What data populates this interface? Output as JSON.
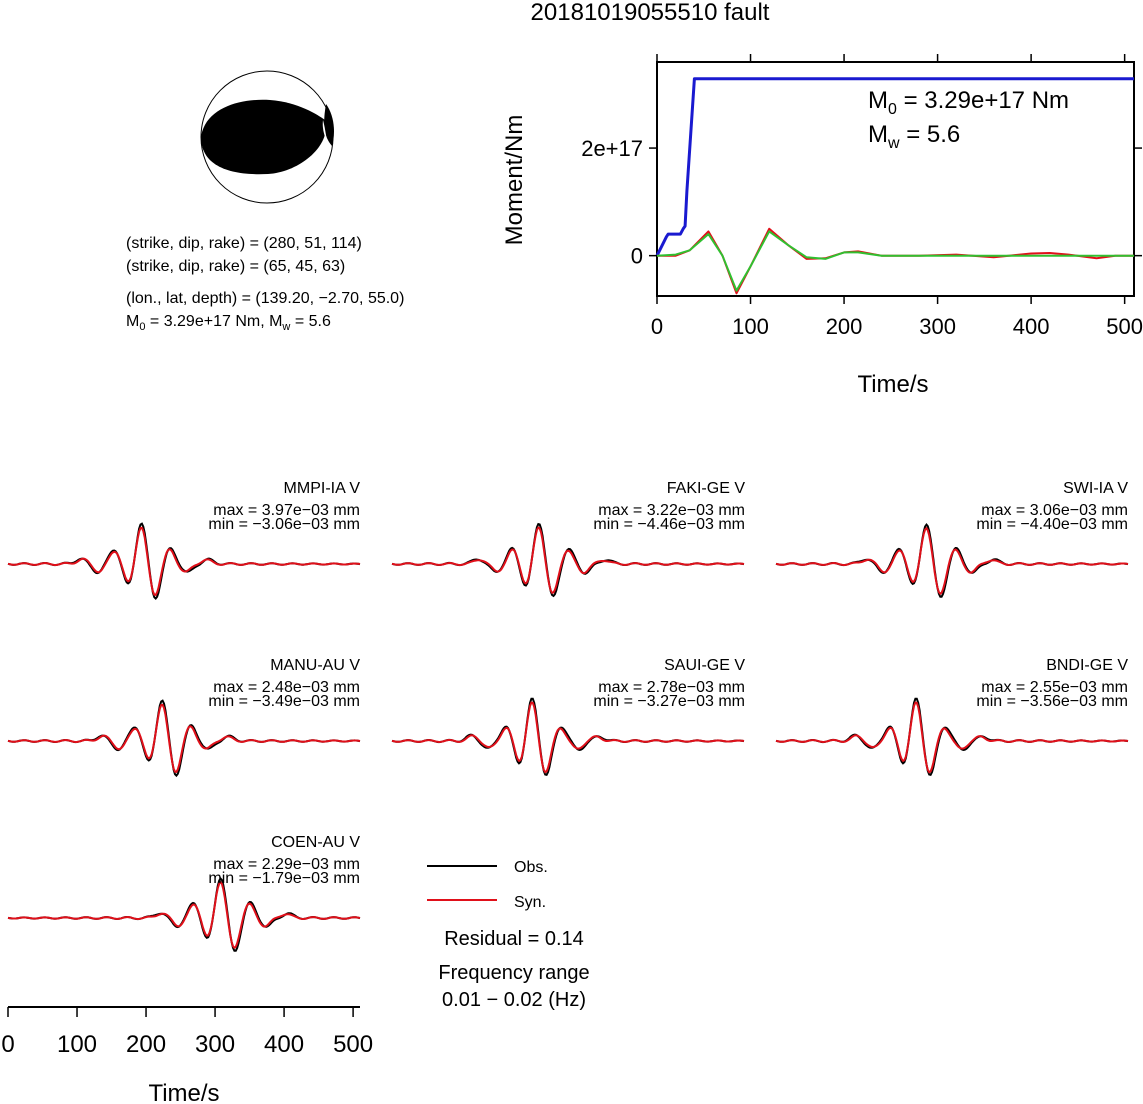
{
  "title": "20181019055510 fault",
  "colors": {
    "obs": "#000000",
    "syn": "#e0101a",
    "moment": "#1a1ad0",
    "stf": "#30c030",
    "beachball": "#000000"
  },
  "focal": {
    "line1": "(strike, dip, rake) = (280, 51, 114)",
    "line2": "(strike, dip, rake) = (65, 45, 63)",
    "line3": "(lon., lat, depth) = (139.20, −2.70, 55.0)",
    "m0_label": "M",
    "m0_sub": "0",
    "m0_text": " = 3.29e+17 Nm, M",
    "mw_sub": "w",
    "mw_text": " = 5.6"
  },
  "moment_chart": {
    "ylabel": "Moment/Nm",
    "xlabel": "Time/s",
    "xticks": [
      "0",
      "100",
      "200",
      "300",
      "400",
      "500"
    ],
    "yticks": [
      "0",
      "2e+17"
    ],
    "annotation_m0": " = 3.29e+17 Nm",
    "annotation_mw": " = 5.6",
    "m0_label": "M",
    "m0_sub": "0",
    "mw_label": "M",
    "mw_sub": "w"
  },
  "chart_data": [
    {
      "type": "line",
      "title": "",
      "xlabel": "Time/s",
      "ylabel": "Moment/Nm",
      "xlim": [
        0,
        510
      ],
      "ylim": [
        -7.5e+16,
        3.6e+17
      ],
      "series": [
        {
          "color": "#1a1ad0",
          "x": [
            0,
            10,
            12,
            25,
            28,
            30,
            32,
            40,
            510
          ],
          "y": [
            0,
            3.5e+16,
            4e+16,
            4e+16,
            5e+16,
            5.5e+16,
            1.2e+17,
            3.29e+17,
            3.29e+17
          ]
        },
        {
          "color": "#e0101a",
          "x": [
            0,
            20,
            35,
            55,
            70,
            85,
            100,
            120,
            140,
            160,
            180,
            200,
            215,
            240,
            280,
            320,
            360,
            400,
            420,
            440,
            470,
            490,
            510
          ],
          "y": [
            0,
            0,
            1e+16,
            4.5e+16,
            0,
            -7e+16,
            -2e+16,
            5e+16,
            2e+16,
            -6000000000000000.0,
            -5000000000000000.0,
            6000000000000000.0,
            8000000000000000.0,
            0,
            0,
            2000000000000000.0,
            -3000000000000000.0,
            4000000000000000.0,
            5000000000000000.0,
            2000000000000000.0,
            -5000000000000000.0,
            0,
            0
          ]
        },
        {
          "color": "#30c030",
          "x": [
            0,
            20,
            35,
            55,
            70,
            85,
            100,
            120,
            140,
            160,
            180,
            200,
            215,
            240,
            280,
            320,
            360,
            400,
            420,
            440,
            470,
            490,
            510
          ],
          "y": [
            0,
            2000000000000000.0,
            1e+16,
            4e+16,
            0,
            -6.5e+16,
            -2e+16,
            4.5e+16,
            2e+16,
            -3000000000000000.0,
            -6000000000000000.0,
            6000000000000000.0,
            6000000000000000.0,
            0,
            0,
            0,
            0,
            0,
            0,
            0,
            0,
            0,
            0
          ]
        }
      ]
    }
  ],
  "stations": [
    {
      "name": "MMPI-IA V",
      "max": "max = 3.97e−03 mm",
      "min": "min = −3.06e−03 mm"
    },
    {
      "name": "FAKI-GE V",
      "max": "max = 3.22e−03 mm",
      "min": "min = −4.46e−03 mm"
    },
    {
      "name": "SWI-IA V",
      "max": "max = 3.06e−03 mm",
      "min": "min = −4.40e−03 mm"
    },
    {
      "name": "MANU-AU V",
      "max": "max = 2.48e−03 mm",
      "min": "min = −3.49e−03 mm"
    },
    {
      "name": "SAUI-GE V",
      "max": "max = 2.78e−03 mm",
      "min": "min = −3.27e−03 mm"
    },
    {
      "name": "BNDI-GE V",
      "max": "max = 2.55e−03 mm",
      "min": "min = −3.56e−03 mm"
    },
    {
      "name": "COEN-AU V",
      "max": "max = 2.29e−03 mm",
      "min": "min = −1.79e−03 mm"
    }
  ],
  "legend": {
    "obs": "Obs.",
    "syn": "Syn."
  },
  "residual": "Residual = 0.14",
  "freq_label": "Frequency range",
  "freq_value": "0.01 − 0.02 (Hz)",
  "bottom_axis": {
    "xlabel": "Time/s",
    "xticks": [
      "0",
      "100",
      "200",
      "300",
      "400",
      "500"
    ]
  }
}
